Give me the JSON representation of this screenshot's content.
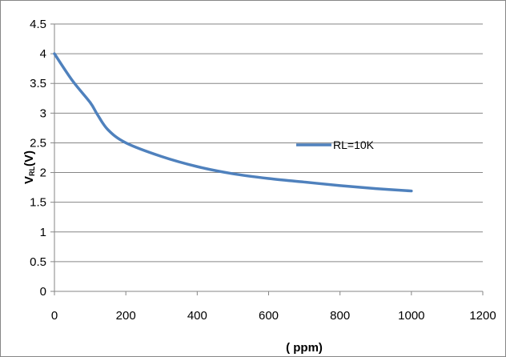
{
  "chart_data": {
    "type": "line",
    "xlabel": "( ppm)",
    "ylabel_main": "V",
    "ylabel_sub": "RL",
    "ylabel_unit": "(V)",
    "xlim": [
      0,
      1200
    ],
    "ylim": [
      0,
      4.5
    ],
    "x_ticks": [
      "0",
      "200",
      "400",
      "600",
      "800",
      "1000",
      "1200"
    ],
    "y_ticks": [
      "0",
      "0.5",
      "1",
      "1.5",
      "2",
      "2.5",
      "3",
      "3.5",
      "4",
      "4.5"
    ],
    "grid": true,
    "legend_position": "right",
    "series": [
      {
        "name": "RL=10K",
        "color": "#4f81bd",
        "x": [
          0,
          50,
          100,
          120,
          150,
          200,
          300,
          400,
          500,
          600,
          700,
          800,
          900,
          1000
        ],
        "y": [
          4.0,
          3.55,
          3.18,
          2.98,
          2.72,
          2.5,
          2.27,
          2.1,
          1.98,
          1.9,
          1.84,
          1.78,
          1.73,
          1.69
        ]
      }
    ]
  }
}
